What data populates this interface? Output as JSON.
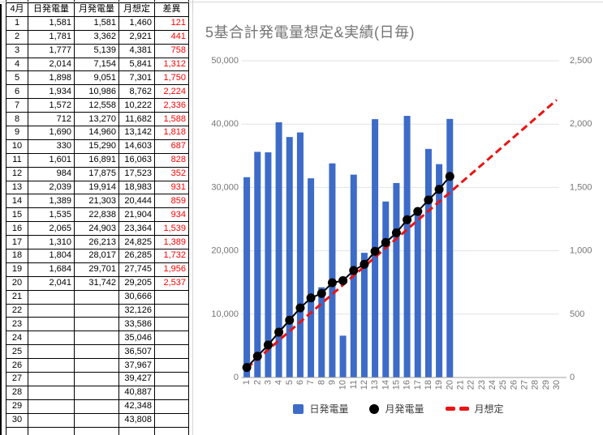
{
  "accent_colors": {
    "bar_blue": "#3D6BC8",
    "line_black": "#000000",
    "target_red": "#E81414",
    "diff_red": "#FF0000",
    "title_gray": "#757575",
    "axis_label_gray": "#757575",
    "gridline_gray": "#E2E2E2",
    "axis_line_gray": "#9E9E9E"
  },
  "table": {
    "headers": [
      "4月",
      "日発電量",
      "月発電量",
      "月想定",
      "差異"
    ],
    "rows": [
      [
        "1",
        "1,581",
        "1,581",
        "1,460",
        "121"
      ],
      [
        "2",
        "1,781",
        "3,362",
        "2,921",
        "441"
      ],
      [
        "3",
        "1,777",
        "5,139",
        "4,381",
        "758"
      ],
      [
        "4",
        "2,014",
        "7,154",
        "5,841",
        "1,312"
      ],
      [
        "5",
        "1,898",
        "9,051",
        "7,301",
        "1,750"
      ],
      [
        "6",
        "1,934",
        "10,986",
        "8,762",
        "2,224"
      ],
      [
        "7",
        "1,572",
        "12,558",
        "10,222",
        "2,336"
      ],
      [
        "8",
        "712",
        "13,270",
        "11,682",
        "1,588"
      ],
      [
        "9",
        "1,690",
        "14,960",
        "13,142",
        "1,818"
      ],
      [
        "10",
        "330",
        "15,290",
        "14,603",
        "687"
      ],
      [
        "11",
        "1,601",
        "16,891",
        "16,063",
        "828"
      ],
      [
        "12",
        "984",
        "17,875",
        "17,523",
        "352"
      ],
      [
        "13",
        "2,039",
        "19,914",
        "18,983",
        "931"
      ],
      [
        "14",
        "1,389",
        "21,303",
        "20,444",
        "859"
      ],
      [
        "15",
        "1,535",
        "22,838",
        "21,904",
        "934"
      ],
      [
        "16",
        "2,065",
        "24,903",
        "23,364",
        "1,539"
      ],
      [
        "17",
        "1,310",
        "26,213",
        "24,825",
        "1,389"
      ],
      [
        "18",
        "1,804",
        "28,017",
        "26,285",
        "1,732"
      ],
      [
        "19",
        "1,684",
        "29,701",
        "27,745",
        "1,956"
      ],
      [
        "20",
        "2,041",
        "31,742",
        "29,205",
        "2,537"
      ],
      [
        "21",
        "",
        "",
        "30,666",
        ""
      ],
      [
        "22",
        "",
        "",
        "32,126",
        ""
      ],
      [
        "23",
        "",
        "",
        "33,586",
        ""
      ],
      [
        "24",
        "",
        "",
        "35,046",
        ""
      ],
      [
        "25",
        "",
        "",
        "36,507",
        ""
      ],
      [
        "26",
        "",
        "",
        "37,967",
        ""
      ],
      [
        "27",
        "",
        "",
        "39,427",
        ""
      ],
      [
        "28",
        "",
        "",
        "40,887",
        ""
      ],
      [
        "29",
        "",
        "",
        "42,348",
        ""
      ],
      [
        "30",
        "",
        "",
        "43,808",
        ""
      ]
    ]
  },
  "chart_data": {
    "type": "combo",
    "title": "5基合計発電量想定&実績(日毎)",
    "categories": [
      1,
      2,
      3,
      4,
      5,
      6,
      7,
      8,
      9,
      10,
      11,
      12,
      13,
      14,
      15,
      16,
      17,
      18,
      19,
      20,
      21,
      22,
      23,
      24,
      25,
      26,
      27,
      28,
      29,
      30
    ],
    "series": [
      {
        "name": "日発電量",
        "type": "bar",
        "axis": "right",
        "color": "#3D6BC8",
        "values": [
          1581,
          1781,
          1777,
          2014,
          1898,
          1934,
          1572,
          712,
          1690,
          330,
          1601,
          984,
          2039,
          1389,
          1535,
          2065,
          1310,
          1804,
          1684,
          2041
        ]
      },
      {
        "name": "月発電量",
        "type": "line",
        "marker": "circle",
        "axis": "left",
        "color": "#000000",
        "values": [
          1581,
          3362,
          5139,
          7154,
          9051,
          10986,
          12558,
          13270,
          14960,
          15290,
          16891,
          17875,
          19914,
          21303,
          22838,
          24903,
          26213,
          28017,
          29701,
          31742
        ]
      },
      {
        "name": "月想定",
        "type": "line",
        "style": "dashed",
        "axis": "left",
        "color": "#E81414",
        "values": [
          1460,
          2921,
          4381,
          5841,
          7301,
          8762,
          10222,
          11682,
          13142,
          14603,
          16063,
          17523,
          18983,
          20444,
          21904,
          23364,
          24825,
          26285,
          27745,
          29205,
          30666,
          32126,
          33586,
          35046,
          36507,
          37967,
          39427,
          40887,
          42348,
          43808
        ]
      }
    ],
    "left_axis": {
      "min": 0,
      "max": 50000,
      "ticks": [
        "0",
        "10,000",
        "20,000",
        "30,000",
        "40,000",
        "50,000"
      ]
    },
    "right_axis": {
      "min": 0,
      "max": 2500,
      "ticks": [
        "0",
        "500",
        "1,000",
        "1,500",
        "2,000",
        "2,500"
      ]
    },
    "x_axis": {
      "labels": [
        "1",
        "2",
        "3",
        "4",
        "5",
        "6",
        "7",
        "8",
        "9",
        "10",
        "11",
        "12",
        "13",
        "14",
        "15",
        "16",
        "17",
        "18",
        "19",
        "20",
        "21",
        "22",
        "23",
        "24",
        "25",
        "26",
        "27",
        "28",
        "29",
        "30"
      ]
    },
    "legend_position": "bottom",
    "grid": true
  }
}
